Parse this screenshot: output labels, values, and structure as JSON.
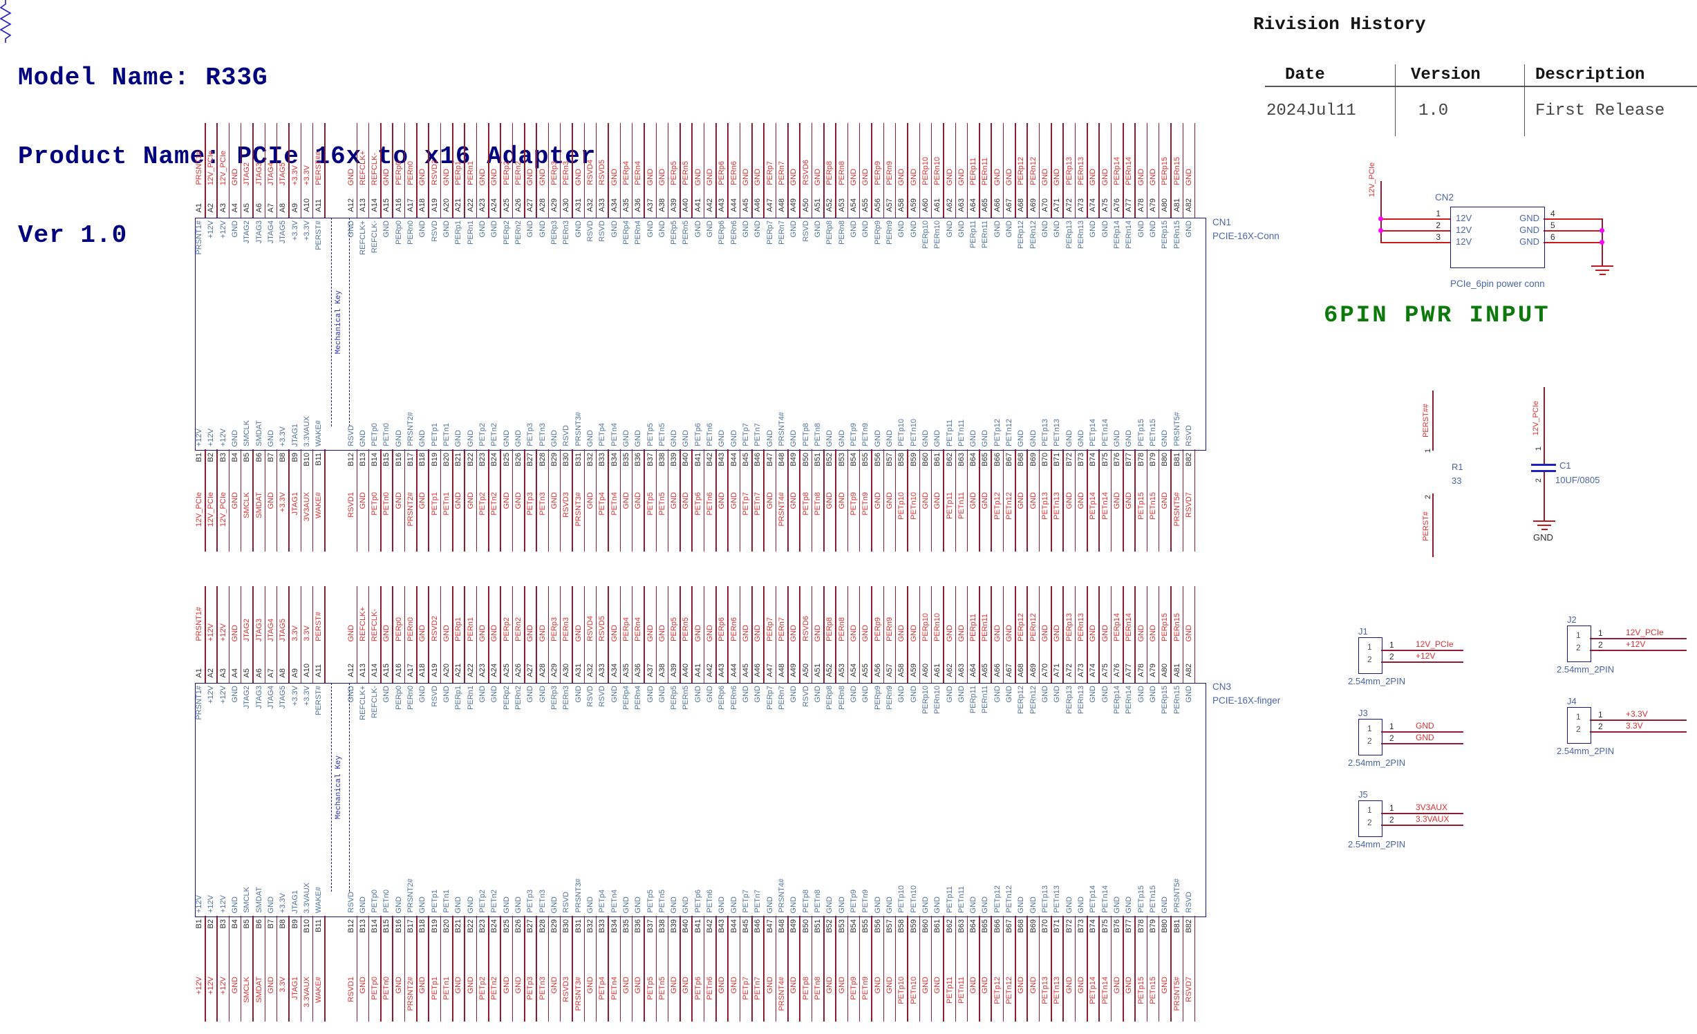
{
  "title_block": {
    "model_name": "Model Name: R33G",
    "product_name": "Product Name: PCIe 16x to x16 Adapter",
    "version": "Ver 1.0"
  },
  "revision_history": {
    "title": "Rivision History",
    "columns": [
      "Date",
      "Version",
      "Description"
    ],
    "rows": [
      [
        "2024Jul11",
        "1.0",
        "First Release"
      ]
    ]
  },
  "power_input_banner": {
    "text": "6PIN PWR INPUT"
  },
  "colors": {
    "title_navy": "#00007e",
    "net_red": "#e03030",
    "name_blue": "#51749f",
    "ref_blue": "#4a66a8",
    "outline_navy": "#16168a",
    "wire_maroon": "#8c1c2e",
    "wire_red": "#cc1a1a",
    "junction_magenta": "#ff00ff",
    "banner_green": "#0b7a0b",
    "gnd_symbol_red": "#c01820"
  },
  "connectors": {
    "cn1": {
      "ref": "CN1",
      "part": "PCIE-16X-Conn",
      "key_label": "Mechanical Key",
      "net_overrides": {}
    },
    "cn3": {
      "ref": "CN3",
      "part": "PCIE-16X-finger",
      "key_label": "Mechanical Key",
      "net_overrides": {
        "A2": "+12V",
        "A3": "+12V",
        "A9": "3.3V",
        "A10": "3.3V",
        "A11": "PERST#",
        "B1": "+12V",
        "B2": "+12V",
        "B3": "+12V",
        "B8": "3.3V",
        "B10": "3.3VAUX"
      }
    }
  },
  "pcie_pins": {
    "a_side": [
      [
        "A1",
        "PRSNT1#",
        "PRSNT1#"
      ],
      [
        "A2",
        "+12V",
        "12V_PCIe"
      ],
      [
        "A3",
        "+12V",
        "12V_PCIe"
      ],
      [
        "A4",
        "GND",
        "GND"
      ],
      [
        "A5",
        "JTAG2",
        "JTAG2"
      ],
      [
        "A6",
        "JTAG3",
        "JTAG3"
      ],
      [
        "A7",
        "JTAG4",
        "JTAG4"
      ],
      [
        "A8",
        "JTAG5",
        "JTAG5"
      ],
      [
        "A9",
        "+3.3V",
        "+3.3V"
      ],
      [
        "A10",
        "+3.3V",
        "+3.3V"
      ],
      [
        "A11",
        "PERST#",
        "PERST##"
      ],
      [
        "A12",
        "GND",
        "GND"
      ],
      [
        "A13",
        "REFCLK+",
        "REFCLK+"
      ],
      [
        "A14",
        "REFCLK-",
        "REFCLK-"
      ],
      [
        "A15",
        "GND",
        "GND"
      ],
      [
        "A16",
        "PERp0",
        "PERp0"
      ],
      [
        "A17",
        "PERn0",
        "PERn0"
      ],
      [
        "A18",
        "GND",
        "GND"
      ],
      [
        "A19",
        "RSVD",
        "RSVD2"
      ],
      [
        "A20",
        "GND",
        "GND"
      ],
      [
        "A21",
        "PERp1",
        "PERp1"
      ],
      [
        "A22",
        "PERn1",
        "PERn1"
      ],
      [
        "A23",
        "GND",
        "GND"
      ],
      [
        "A24",
        "GND",
        "GND"
      ],
      [
        "A25",
        "PERp2",
        "PERp2"
      ],
      [
        "A26",
        "PERn2",
        "PERn2"
      ],
      [
        "A27",
        "GND",
        "GND"
      ],
      [
        "A28",
        "GND",
        "GND"
      ],
      [
        "A29",
        "PERp3",
        "PERp3"
      ],
      [
        "A30",
        "PERn3",
        "PERn3"
      ],
      [
        "A31",
        "GND",
        "GND"
      ],
      [
        "A32",
        "RSVD",
        "RSVD4"
      ],
      [
        "A33",
        "RSVD",
        "RSVD5"
      ],
      [
        "A34",
        "GND",
        "GND"
      ],
      [
        "A35",
        "PERp4",
        "PERp4"
      ],
      [
        "A36",
        "PERn4",
        "PERn4"
      ],
      [
        "A37",
        "GND",
        "GND"
      ],
      [
        "A38",
        "GND",
        "GND"
      ],
      [
        "A39",
        "PERp5",
        "PERp5"
      ],
      [
        "A40",
        "PERn5",
        "PERn5"
      ],
      [
        "A41",
        "GND",
        "GND"
      ],
      [
        "A42",
        "GND",
        "GND"
      ],
      [
        "A43",
        "PERp6",
        "PERp6"
      ],
      [
        "A44",
        "PERn6",
        "PERn6"
      ],
      [
        "A45",
        "GND",
        "GND"
      ],
      [
        "A46",
        "GND",
        "GND"
      ],
      [
        "A47",
        "PERp7",
        "PERp7"
      ],
      [
        "A48",
        "PERn7",
        "PERn7"
      ],
      [
        "A49",
        "GND",
        "GND"
      ],
      [
        "A50",
        "RSVD",
        "RSVD6"
      ],
      [
        "A51",
        "GND",
        "GND"
      ],
      [
        "A52",
        "PERp8",
        "PERp8"
      ],
      [
        "A53",
        "PERn8",
        "PERn8"
      ],
      [
        "A54",
        "GND",
        "GND"
      ],
      [
        "A55",
        "GND",
        "GND"
      ],
      [
        "A56",
        "PERp9",
        "PERp9"
      ],
      [
        "A57",
        "PERn9",
        "PERn9"
      ],
      [
        "A58",
        "GND",
        "GND"
      ],
      [
        "A59",
        "GND",
        "GND"
      ],
      [
        "A60",
        "PERp10",
        "PERp10"
      ],
      [
        "A61",
        "PERn10",
        "PERn10"
      ],
      [
        "A62",
        "GND",
        "GND"
      ],
      [
        "A63",
        "GND",
        "GND"
      ],
      [
        "A64",
        "PERp11",
        "PERp11"
      ],
      [
        "A65",
        "PERn11",
        "PERn11"
      ],
      [
        "A66",
        "GND",
        "GND"
      ],
      [
        "A67",
        "GND",
        "GND"
      ],
      [
        "A68",
        "PERp12",
        "PERp12"
      ],
      [
        "A69",
        "PERn12",
        "PERn12"
      ],
      [
        "A70",
        "GND",
        "GND"
      ],
      [
        "A71",
        "GND",
        "GND"
      ],
      [
        "A72",
        "PERp13",
        "PERp13"
      ],
      [
        "A73",
        "PERn13",
        "PERn13"
      ],
      [
        "A74",
        "GND",
        "GND"
      ],
      [
        "A75",
        "GND",
        "GND"
      ],
      [
        "A76",
        "PERp14",
        "PERp14"
      ],
      [
        "A77",
        "PERn14",
        "PERn14"
      ],
      [
        "A78",
        "GND",
        "GND"
      ],
      [
        "A79",
        "GND",
        "GND"
      ],
      [
        "A80",
        "PERp15",
        "PERp15"
      ],
      [
        "A81",
        "PERn15",
        "PERn15"
      ],
      [
        "A82",
        "GND",
        "GND"
      ]
    ],
    "b_side": [
      [
        "B1",
        "+12V",
        "12V_PCIe"
      ],
      [
        "B2",
        "+12V",
        "12V_PCIe"
      ],
      [
        "B3",
        "+12V",
        "12V_PCIe"
      ],
      [
        "B4",
        "GND",
        "GND"
      ],
      [
        "B5",
        "SMCLK",
        "SMCLK"
      ],
      [
        "B6",
        "SMDAT",
        "SMDAT"
      ],
      [
        "B7",
        "GND",
        "GND"
      ],
      [
        "B8",
        "+3.3V",
        "+3.3V"
      ],
      [
        "B9",
        "JTAG1",
        "JTAG1"
      ],
      [
        "B10",
        "3.3VAUX",
        "3V3AUX"
      ],
      [
        "B11",
        "WAKE#",
        "WAKE#"
      ],
      [
        "B12",
        "RSVD",
        "RSVD1"
      ],
      [
        "B13",
        "GND",
        "GND"
      ],
      [
        "B14",
        "PETp0",
        "PETp0"
      ],
      [
        "B15",
        "PETn0",
        "PETn0"
      ],
      [
        "B16",
        "GND",
        "GND"
      ],
      [
        "B17",
        "PRSNT2#",
        "PRSNT2#"
      ],
      [
        "B18",
        "GND",
        "GND"
      ],
      [
        "B19",
        "PETp1",
        "PETp1"
      ],
      [
        "B20",
        "PETn1",
        "PETn1"
      ],
      [
        "B21",
        "GND",
        "GND"
      ],
      [
        "B22",
        "GND",
        "GND"
      ],
      [
        "B23",
        "PETp2",
        "PETp2"
      ],
      [
        "B24",
        "PETn2",
        "PETn2"
      ],
      [
        "B25",
        "GND",
        "GND"
      ],
      [
        "B26",
        "GND",
        "GND"
      ],
      [
        "B27",
        "PETp3",
        "PETp3"
      ],
      [
        "B28",
        "PETn3",
        "PETn3"
      ],
      [
        "B29",
        "GND",
        "GND"
      ],
      [
        "B30",
        "RSVD",
        "RSVD3"
      ],
      [
        "B31",
        "PRSNT3#",
        "PRSNT3#"
      ],
      [
        "B32",
        "GND",
        "GND"
      ],
      [
        "B33",
        "PETp4",
        "PETp4"
      ],
      [
        "B34",
        "PETn4",
        "PETn4"
      ],
      [
        "B35",
        "GND",
        "GND"
      ],
      [
        "B36",
        "GND",
        "GND"
      ],
      [
        "B37",
        "PETp5",
        "PETp5"
      ],
      [
        "B38",
        "PETn5",
        "PETn5"
      ],
      [
        "B39",
        "GND",
        "GND"
      ],
      [
        "B40",
        "GND",
        "GND"
      ],
      [
        "B41",
        "PETp6",
        "PETp6"
      ],
      [
        "B42",
        "PETn6",
        "PETn6"
      ],
      [
        "B43",
        "GND",
        "GND"
      ],
      [
        "B44",
        "GND",
        "GND"
      ],
      [
        "B45",
        "PETp7",
        "PETp7"
      ],
      [
        "B46",
        "PETn7",
        "PETn7"
      ],
      [
        "B47",
        "GND",
        "GND"
      ],
      [
        "B48",
        "PRSNT4#",
        "PRSNT4#"
      ],
      [
        "B49",
        "GND",
        "GND"
      ],
      [
        "B50",
        "PETp8",
        "PETp8"
      ],
      [
        "B51",
        "PETn8",
        "PETn8"
      ],
      [
        "B52",
        "GND",
        "GND"
      ],
      [
        "B53",
        "GND",
        "GND"
      ],
      [
        "B54",
        "PETp9",
        "PETp9"
      ],
      [
        "B55",
        "PETn9",
        "PETn9"
      ],
      [
        "B56",
        "GND",
        "GND"
      ],
      [
        "B57",
        "GND",
        "GND"
      ],
      [
        "B58",
        "PETp10",
        "PETp10"
      ],
      [
        "B59",
        "PETn10",
        "PETn10"
      ],
      [
        "B60",
        "GND",
        "GND"
      ],
      [
        "B61",
        "GND",
        "GND"
      ],
      [
        "B62",
        "PETp11",
        "PETp11"
      ],
      [
        "B63",
        "PETn11",
        "PETn11"
      ],
      [
        "B64",
        "GND",
        "GND"
      ],
      [
        "B65",
        "GND",
        "GND"
      ],
      [
        "B66",
        "PETp12",
        "PETp12"
      ],
      [
        "B67",
        "PETn12",
        "PETn12"
      ],
      [
        "B68",
        "GND",
        "GND"
      ],
      [
        "B69",
        "GND",
        "GND"
      ],
      [
        "B70",
        "PETp13",
        "PETp13"
      ],
      [
        "B71",
        "PETn13",
        "PETn13"
      ],
      [
        "B72",
        "GND",
        "GND"
      ],
      [
        "B73",
        "GND",
        "GND"
      ],
      [
        "B74",
        "PETp14",
        "PETp14"
      ],
      [
        "B75",
        "PETn14",
        "PETn14"
      ],
      [
        "B76",
        "GND",
        "GND"
      ],
      [
        "B77",
        "GND",
        "GND"
      ],
      [
        "B78",
        "PETp15",
        "PETp15"
      ],
      [
        "B79",
        "PETn15",
        "PETn15"
      ],
      [
        "B80",
        "GND",
        "GND"
      ],
      [
        "B81",
        "PRSNT5#",
        "PRSNT5#"
      ],
      [
        "B82",
        "RSVD",
        "RSVD7"
      ]
    ]
  },
  "cn2": {
    "ref": "CN2",
    "part": "PCIe_6pin power conn",
    "input_net": "12V_PCIe",
    "left_pins": [
      {
        "num": "1",
        "name": "12V"
      },
      {
        "num": "2",
        "name": "12V"
      },
      {
        "num": "3",
        "name": "12V"
      }
    ],
    "right_pins": [
      {
        "num": "4",
        "name": "GND"
      },
      {
        "num": "5",
        "name": "GND"
      },
      {
        "num": "6",
        "name": "GND"
      }
    ]
  },
  "resistor_r1": {
    "ref": "R1",
    "value": "33",
    "pin1": "1",
    "pin2": "2",
    "net_top": "PERST##",
    "net_bottom": "PERST#"
  },
  "capacitor_c1": {
    "ref": "C1",
    "value": "10UF/0805",
    "pin1": "1",
    "pin2": "2",
    "net_top": "12V_PCIe",
    "gnd_label": "GND"
  },
  "jumpers": [
    {
      "ref": "J1",
      "part": "2.54mm_2PIN",
      "pins": [
        "1",
        "2"
      ],
      "nets": [
        "12V_PCIe",
        "+12V"
      ]
    },
    {
      "ref": "J2",
      "part": "2.54mm_2PIN",
      "pins": [
        "1",
        "2"
      ],
      "nets": [
        "12V_PCIe",
        "+12V"
      ]
    },
    {
      "ref": "J3",
      "part": "2.54mm_2PIN",
      "pins": [
        "1",
        "2"
      ],
      "nets": [
        "GND",
        "GND"
      ]
    },
    {
      "ref": "J4",
      "part": "2.54mm_2PIN",
      "pins": [
        "1",
        "2"
      ],
      "nets": [
        "+3.3V",
        "3.3V"
      ]
    },
    {
      "ref": "J5",
      "part": "2.54mm_2PIN",
      "pins": [
        "1",
        "2"
      ],
      "nets": [
        "3V3AUX",
        "3.3VAUX"
      ]
    }
  ]
}
